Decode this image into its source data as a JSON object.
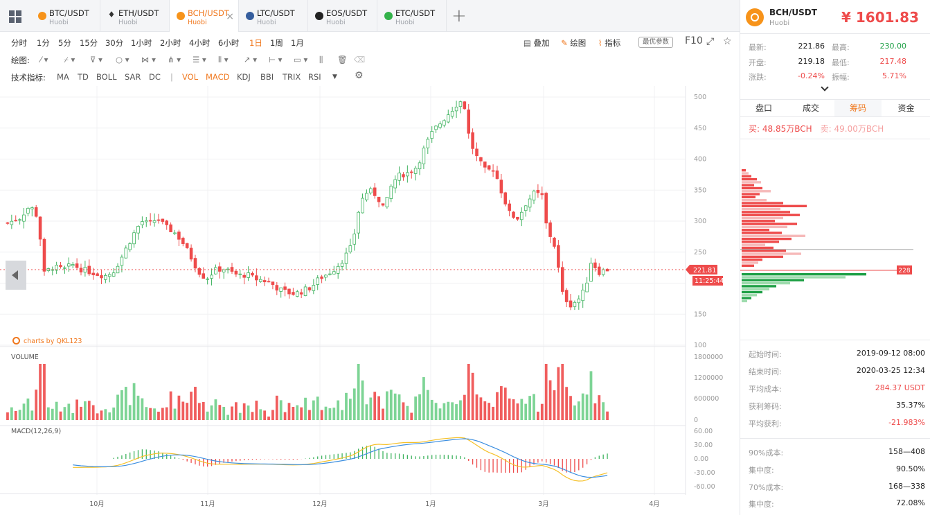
{
  "tabs": [
    {
      "pair": "BTC/USDT",
      "exchange": "Huobi",
      "color": "#f7931a",
      "icon": "btc-icon"
    },
    {
      "pair": "ETH/USDT",
      "exchange": "Huobi",
      "color": "#333333",
      "icon": "eth-icon"
    },
    {
      "pair": "BCH/USDT",
      "exchange": "Huobi",
      "color": "#f7931a",
      "icon": "bch-icon"
    },
    {
      "pair": "LTC/USDT",
      "exchange": "Huobi",
      "color": "#345d9d",
      "icon": "ltc-icon"
    },
    {
      "pair": "EOS/USDT",
      "exchange": "Huobi",
      "color": "#222222",
      "icon": "eos-icon"
    },
    {
      "pair": "ETC/USDT",
      "exchange": "Huobi",
      "color": "#33b24a",
      "icon": "etc-icon"
    }
  ],
  "timeframes": [
    "分时",
    "1分",
    "5分",
    "15分",
    "30分",
    "1小时",
    "2小时",
    "4小时",
    "6小时",
    "1日",
    "1周",
    "1月"
  ],
  "active_timeframe": "1日",
  "toolbar_right": {
    "overlay": "叠加",
    "draw": "绘图",
    "indicators": "指标",
    "optimal": "最优参数",
    "f10": "F10"
  },
  "draw_label": "绘图:",
  "tech_label": "技术指标:",
  "indicators": [
    "MA",
    "TD",
    "BOLL",
    "SAR",
    "DC",
    "VOL",
    "MACD",
    "KDJ",
    "BBI",
    "TRIX",
    "RSI"
  ],
  "active_indicators": [
    "VOL",
    "MACD"
  ],
  "watermark": "charts by QKL123",
  "header": {
    "pair": "BCH/USDT",
    "exchange": "Huobi",
    "price": "¥ 1601.83"
  },
  "stats": {
    "latest_label": "最新:",
    "latest": "221.86",
    "high_label": "最高:",
    "high": "230.00",
    "open_label": "开盘:",
    "open": "219.18",
    "low_label": "最低:",
    "low": "217.48",
    "change_label": "涨跌:",
    "change": "-0.24%",
    "amp_label": "振幅:",
    "amp": "5.71%"
  },
  "panel_tabs": [
    "盘口",
    "成交",
    "筹码",
    "资金"
  ],
  "active_panel_tab": "筹码",
  "buy_text": "买: 48.85万BCH",
  "sell_text": "卖: 49.00万BCH",
  "info": [
    {
      "k": "起始时间:",
      "v": "2019-09-12 08:00",
      "red": false
    },
    {
      "k": "结束时间:",
      "v": "2020-03-25 12:34",
      "red": false
    },
    {
      "k": "平均成本:",
      "v": "284.37 USDT",
      "red": true
    },
    {
      "k": "获利筹码:",
      "v": "35.37%",
      "red": false
    },
    {
      "k": "平均获利:",
      "v": "-21.983%",
      "red": true
    }
  ],
  "info2": [
    {
      "k": "90%成本:",
      "v": "158—408"
    },
    {
      "k": "集中度:",
      "v": "90.50%"
    },
    {
      "k": "70%成本:",
      "v": "168—338"
    },
    {
      "k": "集中度:",
      "v": "72.08%"
    }
  ],
  "chart_data": {
    "type": "candlestick",
    "price_axis": {
      "ticks": [
        "500",
        "450",
        "400",
        "350",
        "300",
        "250",
        "200",
        "150",
        "100"
      ],
      "min": 100,
      "max": 500
    },
    "current_price": "221.81",
    "current_time": "11:25:44",
    "depth_marker": "228",
    "volume": {
      "label": "VOLUME",
      "ticks": [
        "1800000",
        "1200000",
        "600000",
        "0"
      ],
      "max": 1800000
    },
    "macd": {
      "label": "MACD(12,26,9)",
      "ticks": [
        "60.00",
        "30.00",
        "0.00",
        "-30.00",
        "-60.00"
      ],
      "min": -60,
      "max": 60
    },
    "x_ticks": [
      "10月",
      "11月",
      "12月",
      "1月",
      "3月",
      "4月"
    ],
    "close_path": [
      [
        0,
        297
      ],
      [
        6,
        305
      ],
      [
        11,
        325
      ],
      [
        15,
        306
      ],
      [
        18,
        215
      ],
      [
        22,
        226
      ],
      [
        28,
        222
      ],
      [
        32,
        230
      ],
      [
        36,
        223
      ],
      [
        40,
        219
      ],
      [
        44,
        215
      ],
      [
        48,
        212
      ],
      [
        52,
        218
      ],
      [
        56,
        240
      ],
      [
        62,
        278
      ],
      [
        66,
        300
      ],
      [
        70,
        295
      ],
      [
        74,
        305
      ],
      [
        78,
        290
      ],
      [
        82,
        283
      ],
      [
        86,
        268
      ],
      [
        90,
        245
      ],
      [
        94,
        220
      ],
      [
        98,
        207
      ],
      [
        102,
        220
      ],
      [
        106,
        224
      ],
      [
        110,
        218
      ],
      [
        114,
        212
      ],
      [
        118,
        214
      ],
      [
        122,
        207
      ],
      [
        126,
        205
      ],
      [
        130,
        200
      ],
      [
        134,
        190
      ],
      [
        138,
        185
      ],
      [
        142,
        183
      ],
      [
        146,
        188
      ],
      [
        150,
        194
      ],
      [
        154,
        208
      ],
      [
        158,
        215
      ],
      [
        162,
        225
      ],
      [
        166,
        240
      ],
      [
        170,
        260
      ],
      [
        174,
        330
      ],
      [
        178,
        350
      ],
      [
        182,
        342
      ],
      [
        186,
        320
      ],
      [
        190,
        363
      ],
      [
        194,
        375
      ],
      [
        198,
        378
      ],
      [
        202,
        388
      ],
      [
        206,
        420
      ],
      [
        210,
        445
      ],
      [
        214,
        460
      ],
      [
        218,
        475
      ],
      [
        222,
        490
      ],
      [
        225,
        495
      ],
      [
        228,
        430
      ],
      [
        232,
        400
      ],
      [
        236,
        380
      ],
      [
        240,
        385
      ],
      [
        244,
        345
      ],
      [
        248,
        310
      ],
      [
        252,
        305
      ],
      [
        256,
        330
      ],
      [
        260,
        345
      ],
      [
        264,
        340
      ],
      [
        266,
        290
      ],
      [
        270,
        260
      ],
      [
        274,
        180
      ],
      [
        278,
        165
      ],
      [
        282,
        175
      ],
      [
        285,
        190
      ],
      [
        288,
        235
      ],
      [
        292,
        218
      ],
      [
        296,
        222
      ]
    ]
  }
}
